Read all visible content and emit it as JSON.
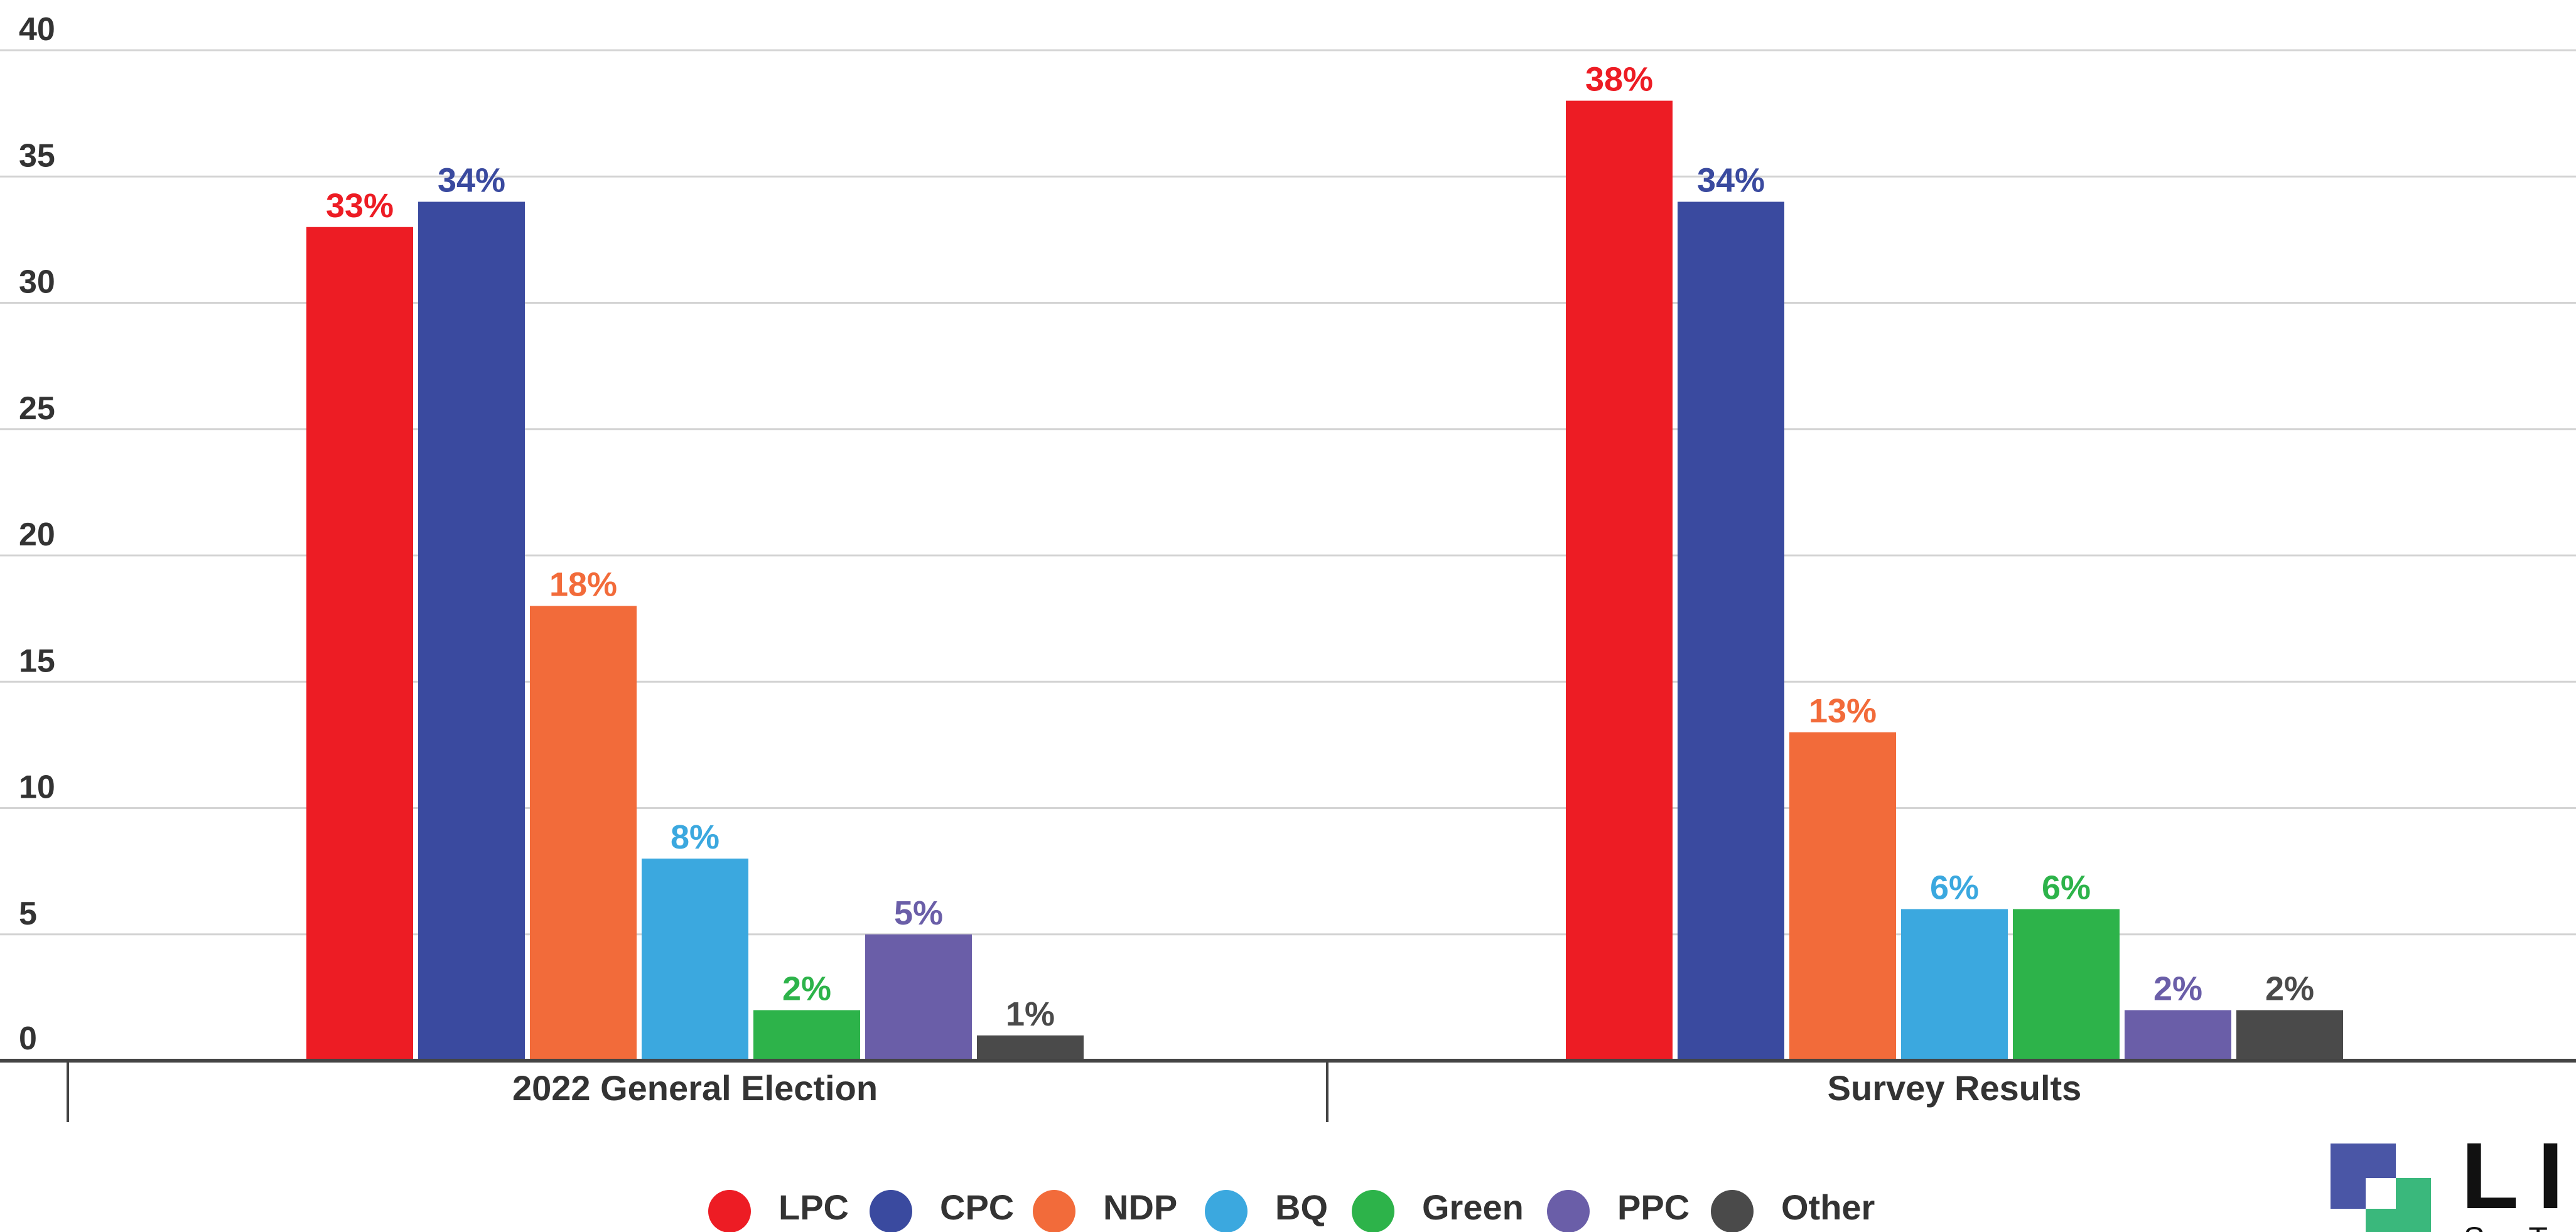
{
  "chart_data": {
    "type": "bar",
    "categories": [
      "2022 General Election",
      "Survey Results"
    ],
    "series": [
      {
        "name": "LPC",
        "color": "#ed1c24",
        "values": [
          33,
          38
        ],
        "labels": [
          "33%",
          "38%"
        ]
      },
      {
        "name": "CPC",
        "color": "#3a4a9f",
        "values": [
          34,
          34
        ],
        "labels": [
          "34%",
          "34%"
        ]
      },
      {
        "name": "NDP",
        "color": "#f26b3a",
        "values": [
          18,
          13
        ],
        "labels": [
          "18%",
          "13%"
        ]
      },
      {
        "name": "BQ",
        "color": "#3ba8df",
        "values": [
          8,
          6
        ],
        "labels": [
          "8%",
          "6%"
        ]
      },
      {
        "name": "Green",
        "color": "#2db34a",
        "values": [
          2,
          6
        ],
        "labels": [
          "2%",
          "6%"
        ]
      },
      {
        "name": "PPC",
        "color": "#6a5ea8",
        "values": [
          5,
          2
        ],
        "labels": [
          "5%",
          "2%"
        ]
      },
      {
        "name": "Other",
        "color": "#4a4a4a",
        "values": [
          1,
          2
        ],
        "labels": [
          "1%",
          "2%"
        ]
      }
    ],
    "y_ticks": [
      "0",
      "5",
      "10",
      "15",
      "20",
      "25",
      "30",
      "35",
      "40"
    ],
    "ylim": [
      0,
      40
    ],
    "grid": true,
    "legend_position": "bottom"
  },
  "logo": {
    "text_main": "LIA",
    "text_sub": "STR",
    "colors": {
      "dark": "#4a56a6",
      "green": "#3ab87c"
    }
  }
}
